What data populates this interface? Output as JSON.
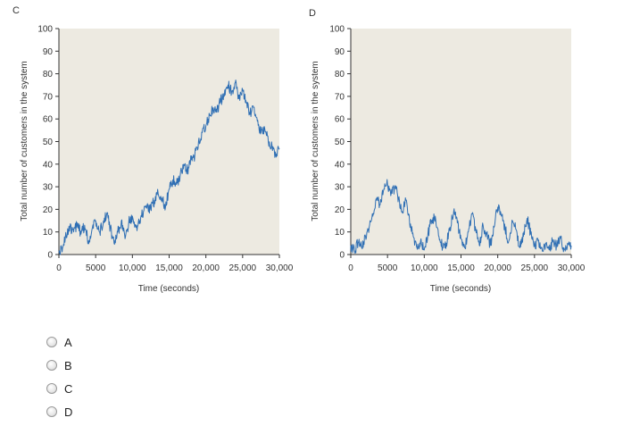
{
  "chart_data": [
    {
      "type": "line",
      "panel": "C",
      "title": "",
      "xlabel": "Time (seconds)",
      "ylabel": "Total number of customers in the system",
      "xlim": [
        0,
        30000
      ],
      "ylim": [
        0,
        100
      ],
      "x_ticks": [
        0,
        5000,
        10000,
        15000,
        20000,
        25000,
        30000
      ],
      "x_tick_labels": [
        "0",
        "5000",
        "10,000",
        "15,000",
        "20,000",
        "25,000",
        "30,000"
      ],
      "y_ticks": [
        0,
        10,
        20,
        30,
        40,
        50,
        60,
        70,
        80,
        90,
        100
      ],
      "y_tick_labels": [
        "0",
        "10",
        "20",
        "30",
        "40",
        "50",
        "60",
        "70",
        "80",
        "90",
        "100"
      ],
      "grid": false,
      "series": [
        {
          "name": "C",
          "color": "#2f6fb4",
          "x": [
            0,
            500,
            1000,
            1500,
            2000,
            2500,
            3000,
            3500,
            4000,
            4500,
            5000,
            5500,
            6000,
            6500,
            7000,
            7500,
            8000,
            8500,
            9000,
            9500,
            10000,
            10500,
            11000,
            11500,
            12000,
            12500,
            13000,
            13500,
            14000,
            14500,
            15000,
            15500,
            16000,
            16500,
            17000,
            17500,
            18000,
            18500,
            19000,
            19500,
            20000,
            20500,
            21000,
            21500,
            22000,
            22500,
            23000,
            23500,
            24000,
            24500,
            25000,
            25500,
            26000,
            26500,
            27000,
            27500,
            28000,
            28500,
            29000,
            29500,
            30000
          ],
          "values": [
            1,
            3,
            8,
            12,
            10,
            14,
            9,
            13,
            6,
            11,
            15,
            10,
            13,
            18,
            12,
            5,
            10,
            15,
            7,
            14,
            17,
            12,
            15,
            19,
            22,
            20,
            24,
            27,
            25,
            21,
            29,
            33,
            31,
            35,
            40,
            37,
            42,
            44,
            50,
            54,
            57,
            62,
            65,
            63,
            68,
            70,
            75,
            72,
            76,
            69,
            73,
            67,
            62,
            65,
            59,
            54,
            56,
            50,
            48,
            44,
            47
          ]
        }
      ]
    },
    {
      "type": "line",
      "panel": "D",
      "title": "",
      "xlabel": "Time (seconds)",
      "ylabel": "Total number of customers in the system",
      "xlim": [
        0,
        30000
      ],
      "ylim": [
        0,
        100
      ],
      "x_ticks": [
        0,
        5000,
        10000,
        15000,
        20000,
        25000,
        30000
      ],
      "x_tick_labels": [
        "0",
        "5000",
        "10,000",
        "15,000",
        "20,000",
        "25,000",
        "30,000"
      ],
      "y_ticks": [
        0,
        10,
        20,
        30,
        40,
        50,
        60,
        70,
        80,
        90,
        100
      ],
      "y_tick_labels": [
        "0",
        "10",
        "20",
        "30",
        "40",
        "50",
        "60",
        "70",
        "80",
        "90",
        "100"
      ],
      "grid": false,
      "series": [
        {
          "name": "D",
          "color": "#2f6fb4",
          "x": [
            0,
            500,
            1000,
            1500,
            2000,
            2500,
            3000,
            3500,
            4000,
            4500,
            5000,
            5500,
            6000,
            6500,
            7000,
            7500,
            8000,
            8500,
            9000,
            9500,
            10000,
            10500,
            11000,
            11500,
            12000,
            12500,
            13000,
            13500,
            14000,
            14500,
            15000,
            15500,
            16000,
            16500,
            17000,
            17500,
            18000,
            18500,
            19000,
            19500,
            20000,
            20500,
            21000,
            21500,
            22000,
            22500,
            23000,
            23500,
            24000,
            24500,
            25000,
            25500,
            26000,
            26500,
            27000,
            27500,
            28000,
            28500,
            29000,
            29500,
            30000
          ],
          "values": [
            4,
            2,
            5,
            3,
            8,
            12,
            17,
            24,
            22,
            29,
            31,
            27,
            30,
            25,
            19,
            24,
            14,
            8,
            3,
            6,
            2,
            9,
            15,
            17,
            8,
            3,
            5,
            12,
            19,
            14,
            7,
            3,
            10,
            18,
            11,
            4,
            13,
            9,
            4,
            12,
            21,
            17,
            11,
            6,
            15,
            11,
            3,
            8,
            16,
            9,
            4,
            6,
            3,
            5,
            2,
            6,
            4,
            7,
            3,
            5,
            4
          ]
        }
      ]
    }
  ],
  "answer_options": [
    "A",
    "B",
    "C",
    "D"
  ]
}
